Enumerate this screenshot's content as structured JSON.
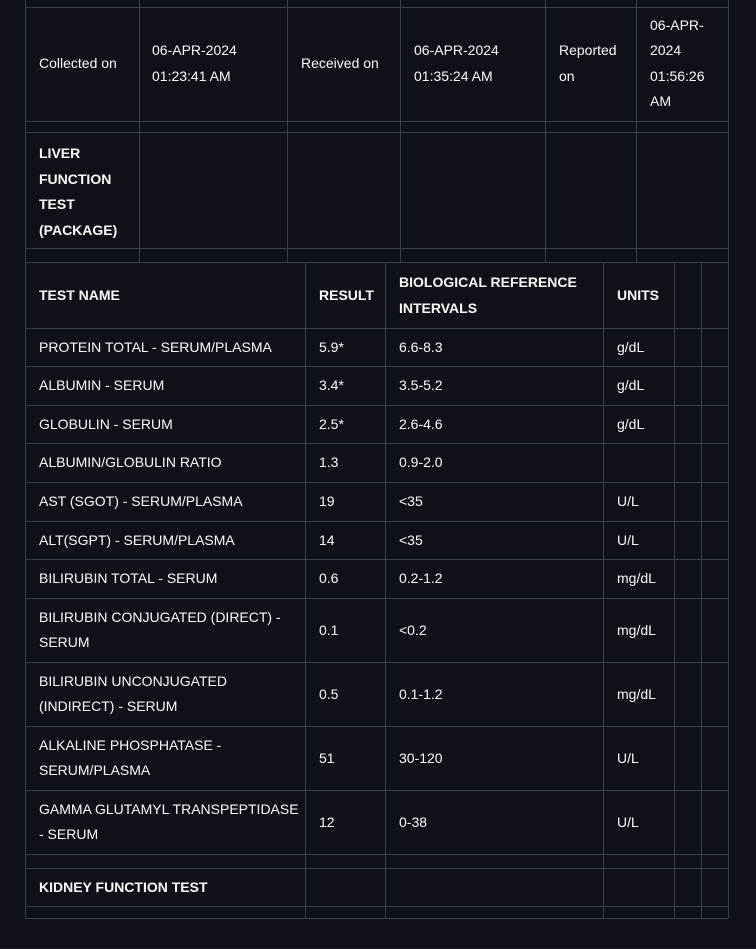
{
  "meta_table": {
    "collected_label": "Collected on",
    "collected_date": "06-APR-2024",
    "collected_time": "01:23:41 AM",
    "received_label": "Received on",
    "received_date": "06-APR-2024",
    "received_time": "01:35:24 AM",
    "reported_label_line1": "Reported",
    "reported_label_line2": "on",
    "reported_date_line1": "06-APR-",
    "reported_date_line2": "2024",
    "reported_time_line1": "01:56:26",
    "reported_time_line2": "AM",
    "section_lines": [
      "LIVER",
      "FUNCTION",
      "TEST",
      "(PACKAGE)"
    ]
  },
  "results_table": {
    "headers": {
      "test_name": "TEST NAME",
      "result": "RESULT",
      "reference_line1": "BIOLOGICAL REFERENCE",
      "reference_line2": "INTERVALS",
      "units": "UNITS"
    },
    "rows": [
      {
        "name": [
          "PROTEIN TOTAL - SERUM/PLASMA"
        ],
        "result": "5.9*",
        "range": "6.6-8.3",
        "units": "g/dL"
      },
      {
        "name": [
          "ALBUMIN - SERUM"
        ],
        "result": "3.4*",
        "range": "3.5-5.2",
        "units": "g/dL"
      },
      {
        "name": [
          "GLOBULIN - SERUM"
        ],
        "result": "2.5*",
        "range": "2.6-4.6",
        "units": "g/dL"
      },
      {
        "name": [
          "ALBUMIN/GLOBULIN RATIO"
        ],
        "result": "1.3",
        "range": "0.9-2.0",
        "units": ""
      },
      {
        "name": [
          "AST (SGOT) - SERUM/PLASMA"
        ],
        "result": "19",
        "range": "<35",
        "units": "U/L"
      },
      {
        "name": [
          "ALT(SGPT) - SERUM/PLASMA"
        ],
        "result": "14",
        "range": "<35",
        "units": "U/L"
      },
      {
        "name": [
          "BILIRUBIN TOTAL - SERUM"
        ],
        "result": "0.6",
        "range": "0.2-1.2",
        "units": "mg/dL"
      },
      {
        "name": [
          "BILIRUBIN CONJUGATED (DIRECT) -",
          "SERUM"
        ],
        "result": "0.1",
        "range": "<0.2",
        "units": "mg/dL"
      },
      {
        "name": [
          "BILIRUBIN UNCONJUGATED",
          "(INDIRECT) - SERUM"
        ],
        "result": "0.5",
        "range": "0.1-1.2",
        "units": "mg/dL"
      },
      {
        "name": [
          "ALKALINE PHOSPHATASE -",
          "SERUM/PLASMA"
        ],
        "result": "51",
        "range": "30-120",
        "units": "U/L"
      },
      {
        "name": [
          "GAMMA GLUTAMYL TRANSPEPTIDASE",
          "- SERUM"
        ],
        "result": "12",
        "range": "0-38",
        "units": "U/L"
      }
    ],
    "section_footer": "KIDNEY FUNCTION TEST"
  }
}
